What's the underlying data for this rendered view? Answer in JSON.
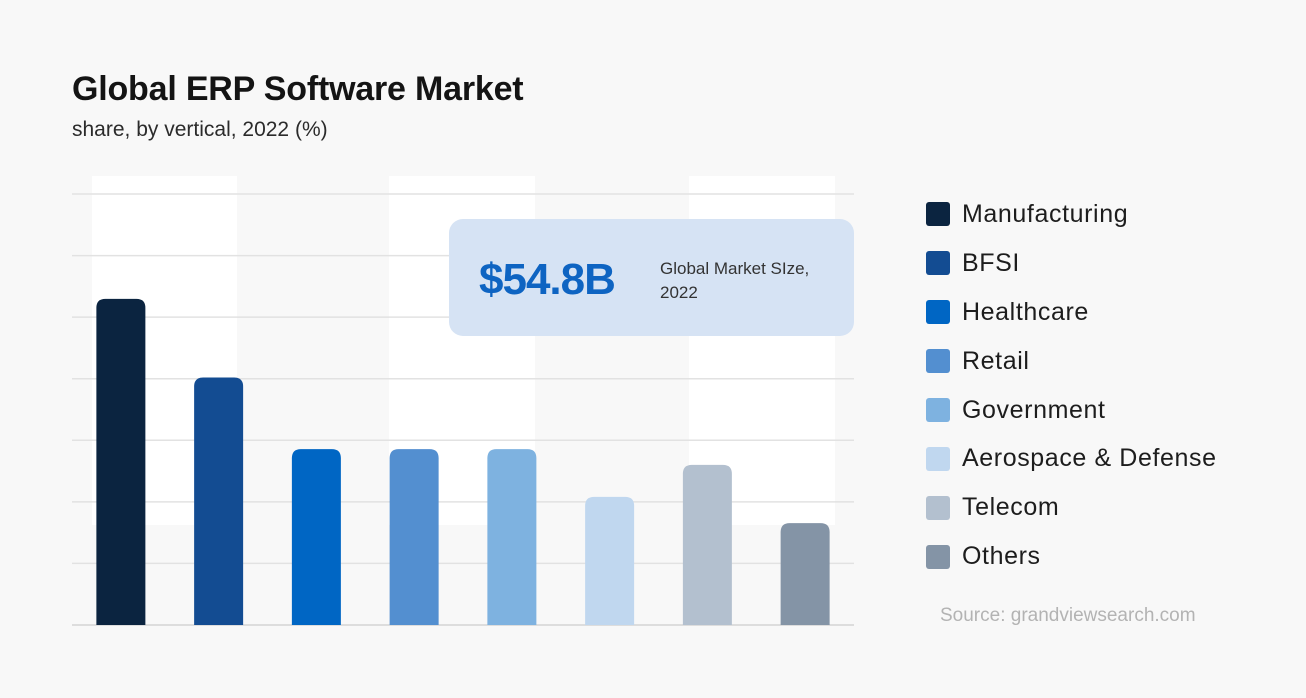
{
  "chart_data": {
    "type": "bar",
    "title": "Global ERP Software Market",
    "subtitle": "share, by vertical, 2022 (%)",
    "categories": [
      "Manufacturing",
      "BFSI",
      "Healthcare",
      "Retail",
      "Government",
      "Aerospace & Defense",
      "Telecom",
      "Others"
    ],
    "values": [
      5.6,
      4.25,
      3.02,
      3.02,
      3.02,
      2.2,
      2.75,
      1.75
    ],
    "colors": [
      "#0b2440",
      "#134c92",
      "#0066c4",
      "#538fd0",
      "#7eb2e0",
      "#c0d7ef",
      "#b3c0cf",
      "#8494a6"
    ],
    "ylim": [
      0,
      7.4
    ],
    "grid": true,
    "legend_position": "right",
    "callout": {
      "value": "$54.8B",
      "label": "Global Market SIze, 2022"
    },
    "source": "Source:  grandviewsearch.com"
  }
}
